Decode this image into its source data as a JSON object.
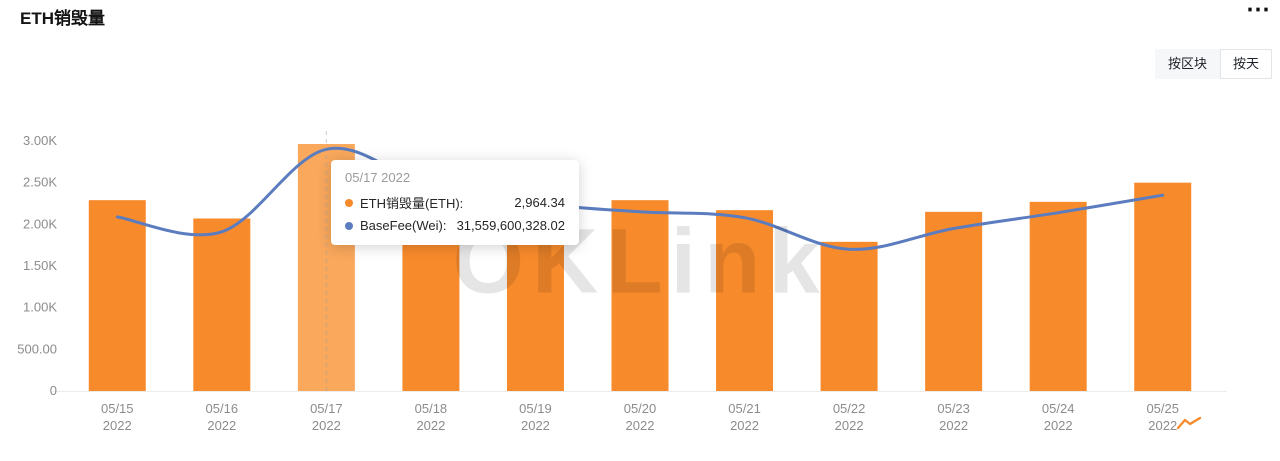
{
  "header": {
    "title": "ETH销毁量",
    "more_icon": "⋯"
  },
  "controls": {
    "options": [
      {
        "label": "按区块",
        "selected": false
      },
      {
        "label": "按天",
        "selected": true
      }
    ]
  },
  "watermark": "OKLink",
  "colors": {
    "bar": "#F78A2B",
    "bar_highlight": "#F9A85C",
    "line": "#5B7CBE",
    "axis_text": "#8C8C8C",
    "crosshair": "rgba(160,160,160,0.55)"
  },
  "tooltip": {
    "title": "05/17 2022",
    "rows": [
      {
        "label": "ETH销毁量(ETH):",
        "value": "2,964.34",
        "color": "#F78A2B"
      },
      {
        "label": "BaseFee(Wei):",
        "value": "31,559,600,328.02",
        "color": "#5B7CBE"
      }
    ]
  },
  "chart_data": {
    "type": "bar",
    "title": "ETH销毁量",
    "categories": [
      "05/15",
      "05/16",
      "05/17",
      "05/18",
      "05/19",
      "05/20",
      "05/21",
      "05/22",
      "05/23",
      "05/24",
      "05/25"
    ],
    "category_year": "2022",
    "ylim": [
      0,
      3000
    ],
    "y_ticks": [
      {
        "value": 0,
        "label": "0"
      },
      {
        "value": 500,
        "label": "500.00"
      },
      {
        "value": 1000,
        "label": "1.00K"
      },
      {
        "value": 1500,
        "label": "1.50K"
      },
      {
        "value": 2000,
        "label": "2.00K"
      },
      {
        "value": 2500,
        "label": "2.50K"
      },
      {
        "value": 3000,
        "label": "3.00K"
      }
    ],
    "grid": false,
    "legend": "none",
    "highlight_index": 2,
    "series": [
      {
        "name": "ETH销毁量(ETH)",
        "type": "bar",
        "color": "#F78A2B",
        "values": [
          2290,
          2070,
          2964.34,
          2400,
          2380,
          2290,
          2170,
          1790,
          2150,
          2270,
          2500
        ]
      },
      {
        "name": "BaseFee(Wei)",
        "type": "line",
        "color": "#5B7CBE",
        "axis": "hidden",
        "values": [
          2090,
          1910,
          2900,
          2450,
          2250,
          2150,
          2080,
          1700,
          1950,
          2140,
          2350
        ]
      }
    ]
  }
}
